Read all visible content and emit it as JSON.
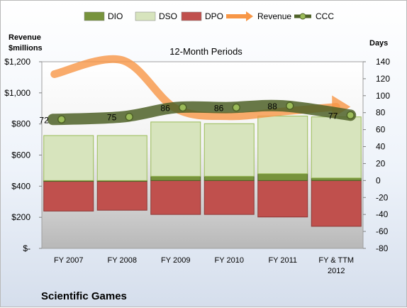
{
  "chart_data": {
    "type": "bar",
    "company": "Scientific Games",
    "title": "12-Month Periods",
    "left_axis_title": "Revenue\n$millions",
    "right_axis_title": "Days",
    "categories": [
      "FY 2007",
      "FY 2008",
      "FY 2009",
      "FY 2010",
      "FY 2011",
      "FY & TTM\n2012"
    ],
    "left_axis": {
      "min": 0,
      "max": 1200,
      "step": 200,
      "tick_labels": [
        "$-",
        "$200",
        "$400",
        "$600",
        "$800",
        "$1,000",
        "$1,200"
      ]
    },
    "right_axis": {
      "min": -80,
      "max": 140,
      "step": 20,
      "tick_labels": [
        "-80",
        "-60",
        "-40",
        "-20",
        "0",
        "20",
        "40",
        "60",
        "80",
        "100",
        "120",
        "140"
      ]
    },
    "series": [
      {
        "name": "DIO",
        "kind": "stacked_bar",
        "axis": "right",
        "color": "#77933c",
        "values": [
          -1,
          -1,
          5,
          5,
          8,
          3
        ],
        "base": 0
      },
      {
        "name": "DSO",
        "kind": "stacked_bar",
        "axis": "right",
        "color": "#d7e4bd",
        "values": [
          53,
          53,
          64,
          62,
          68,
          72
        ],
        "base": "DIO"
      },
      {
        "name": "DPO",
        "kind": "bar_below_zero",
        "axis": "right",
        "color": "#c0504d",
        "values": [
          36,
          35,
          40,
          40,
          43,
          54
        ]
      },
      {
        "name": "Revenue",
        "kind": "line",
        "axis": "left",
        "color": "#f79646",
        "values": [
          1120,
          1210,
          900,
          850,
          880,
          910
        ]
      },
      {
        "name": "CCC",
        "kind": "line",
        "axis": "right",
        "color": "#4f6228",
        "values": [
          72,
          75,
          86,
          86,
          88,
          77
        ],
        "data_labels": [
          "72",
          "75",
          "86",
          "86",
          "88",
          "77"
        ]
      }
    ],
    "legend_position": "top",
    "grid": false
  }
}
